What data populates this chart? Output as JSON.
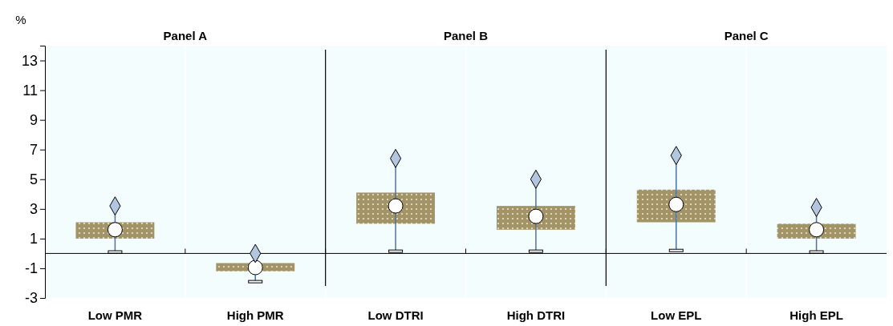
{
  "chart_data": {
    "type": "box",
    "ylabel": "%",
    "categories": [
      "Low PMR",
      "High PMR",
      "Low DTRI",
      "High DTRI",
      "Low EPL",
      "High EPL"
    ],
    "color": "#a39467",
    "boxes": [
      {
        "low": 0.1,
        "q1": 1.0,
        "median": 1.6,
        "q3": 2.1,
        "high": 3.2
      },
      {
        "low": -1.9,
        "q1": -1.2,
        "median": -0.95,
        "q3": -0.65,
        "high": 0
      },
      {
        "low": 0.15,
        "q1": 2.0,
        "median": 3.2,
        "q3": 4.1,
        "high": 6.4
      },
      {
        "low": 0.15,
        "q1": 1.6,
        "median": 2.5,
        "q3": 3.2,
        "high": 5.0
      },
      {
        "low": 0.2,
        "q1": 2.1,
        "median": 3.3,
        "q3": 4.3,
        "high": 6.6
      },
      {
        "low": 0.1,
        "q1": 1.0,
        "median": 1.6,
        "q3": 2.0,
        "high": 3.1
      }
    ],
    "series": [
      {
        "type": "scatter",
        "color": "#b3c6e0",
        "marker": "diamond",
        "x": [
          "Low PMR",
          "High PMR",
          "Low DTRI",
          "High DTRI",
          "Low EPL",
          "High EPL"
        ],
        "values": [
          3.2,
          0,
          6.4,
          5.0,
          6.6,
          3.1
        ]
      }
    ],
    "ylim": [
      -3,
      14
    ],
    "yticks": [
      -3,
      -1,
      1,
      3,
      5,
      7,
      9,
      11,
      13
    ],
    "annotations": [
      "Panel A",
      "Panel B",
      "Panel C"
    ]
  }
}
